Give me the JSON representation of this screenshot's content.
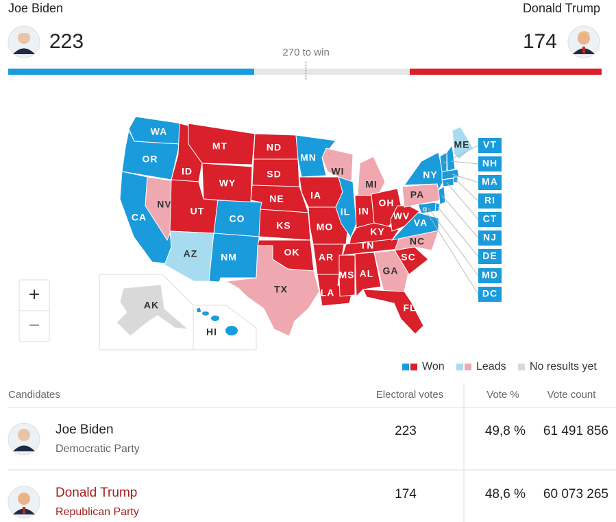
{
  "chart_data": {
    "type": "bar",
    "series": [
      {
        "name": "Joe Biden",
        "color": "#1a9bdb",
        "values": [
          223
        ]
      },
      {
        "name": "Donald Trump",
        "color": "#d9202b",
        "values": [
          174
        ]
      }
    ],
    "xlim": [
      0,
      538
    ],
    "threshold": {
      "value": 270,
      "label": "270 to win"
    }
  },
  "map": {
    "zoom_in": "+",
    "zoom_out": "−",
    "states": [
      {
        "label": "WA",
        "color": "#1a9bdb",
        "text_color": "#ffffff"
      },
      {
        "label": "OR",
        "color": "#1a9bdb",
        "text_color": "#ffffff"
      },
      {
        "label": "CA",
        "color": "#1a9bdb",
        "text_color": "#ffffff"
      },
      {
        "label": "NV",
        "color": "#f0a8b0",
        "text_color": "#333333"
      },
      {
        "label": "ID",
        "color": "#d9202b",
        "text_color": "#ffffff"
      },
      {
        "label": "MT",
        "color": "#d9202b",
        "text_color": "#ffffff"
      },
      {
        "label": "WY",
        "color": "#d9202b",
        "text_color": "#ffffff"
      },
      {
        "label": "UT",
        "color": "#d9202b",
        "text_color": "#ffffff"
      },
      {
        "label": "AZ",
        "color": "#a7dcf0",
        "text_color": "#333333"
      },
      {
        "label": "CO",
        "color": "#1a9bdb",
        "text_color": "#ffffff"
      },
      {
        "label": "NM",
        "color": "#1a9bdb",
        "text_color": "#ffffff"
      },
      {
        "label": "ND",
        "color": "#d9202b",
        "text_color": "#ffffff"
      },
      {
        "label": "SD",
        "color": "#d9202b",
        "text_color": "#ffffff"
      },
      {
        "label": "NE",
        "color": "#d9202b",
        "text_color": "#ffffff"
      },
      {
        "label": "KS",
        "color": "#d9202b",
        "text_color": "#ffffff"
      },
      {
        "label": "OK",
        "color": "#d9202b",
        "text_color": "#ffffff"
      },
      {
        "label": "TX",
        "color": "#f0a8b0",
        "text_color": "#333333"
      },
      {
        "label": "MN",
        "color": "#1a9bdb",
        "text_color": "#ffffff"
      },
      {
        "label": "IA",
        "color": "#d9202b",
        "text_color": "#ffffff"
      },
      {
        "label": "MO",
        "color": "#d9202b",
        "text_color": "#ffffff"
      },
      {
        "label": "AR",
        "color": "#d9202b",
        "text_color": "#ffffff"
      },
      {
        "label": "LA",
        "color": "#d9202b",
        "text_color": "#ffffff"
      },
      {
        "label": "WI",
        "color": "#f0a8b0",
        "text_color": "#333333"
      },
      {
        "label": "IL",
        "color": "#1a9bdb",
        "text_color": "#ffffff"
      },
      {
        "label": "MI",
        "color": "#f0a8b0",
        "text_color": "#333333"
      },
      {
        "label": "IN",
        "color": "#d9202b",
        "text_color": "#ffffff"
      },
      {
        "label": "OH",
        "color": "#d9202b",
        "text_color": "#ffffff"
      },
      {
        "label": "KY",
        "color": "#d9202b",
        "text_color": "#ffffff"
      },
      {
        "label": "TN",
        "color": "#d9202b",
        "text_color": "#ffffff"
      },
      {
        "label": "MS",
        "color": "#d9202b",
        "text_color": "#ffffff"
      },
      {
        "label": "AL",
        "color": "#d9202b",
        "text_color": "#ffffff"
      },
      {
        "label": "GA",
        "color": "#f0a8b0",
        "text_color": "#333333"
      },
      {
        "label": "FL",
        "color": "#d9202b",
        "text_color": "#ffffff"
      },
      {
        "label": "SC",
        "color": "#d9202b",
        "text_color": "#ffffff"
      },
      {
        "label": "NC",
        "color": "#f0a8b0",
        "text_color": "#333333"
      },
      {
        "label": "VA",
        "color": "#1a9bdb",
        "text_color": "#ffffff"
      },
      {
        "label": "WV",
        "color": "#d9202b",
        "text_color": "#ffffff"
      },
      {
        "label": "PA",
        "color": "#f0a8b0",
        "text_color": "#333333"
      },
      {
        "label": "NY",
        "color": "#1a9bdb",
        "text_color": "#ffffff"
      },
      {
        "label": "ME",
        "color": "#a7dcf0",
        "text_color": "#333333"
      },
      {
        "label": "VT",
        "color": "#1a9bdb",
        "text_color": "#ffffff"
      },
      {
        "label": "NH",
        "color": "#1a9bdb",
        "text_color": "#ffffff"
      },
      {
        "label": "MA",
        "color": "#1a9bdb",
        "text_color": "#ffffff"
      },
      {
        "label": "RI",
        "color": "#1a9bdb",
        "text_color": "#ffffff"
      },
      {
        "label": "CT",
        "color": "#1a9bdb",
        "text_color": "#ffffff"
      },
      {
        "label": "NJ",
        "color": "#1a9bdb",
        "text_color": "#ffffff"
      },
      {
        "label": "DE",
        "color": "#1a9bdb",
        "text_color": "#ffffff"
      },
      {
        "label": "MD",
        "color": "#1a9bdb",
        "text_color": "#ffffff"
      },
      {
        "label": "DC",
        "color": "#1a9bdb",
        "text_color": "#ffffff"
      },
      {
        "label": "AK",
        "color": "#d9d9d9",
        "text_color": "#333333"
      },
      {
        "label": "HI",
        "color": "#1a9bdb",
        "text_color": "#333333"
      }
    ]
  },
  "legend": [
    {
      "label": "Won",
      "colors": [
        "#1a9bdb",
        "#d9202b"
      ]
    },
    {
      "label": "Leads",
      "colors": [
        "#a7dcf0",
        "#f0a8b0"
      ]
    },
    {
      "label": "No results yet",
      "colors": [
        "#d9d9d9"
      ]
    }
  ],
  "table": {
    "headers": [
      "Candidates",
      "Electoral votes",
      "Vote %",
      "Vote count"
    ],
    "rows": [
      {
        "party": "Democratic Party",
        "vote_pct": "49,8 %",
        "vote_count": "61 491 856",
        "name_color": "#222222",
        "party_color": "#666666"
      },
      {
        "party": "Republican Party",
        "vote_pct": "48,6 %",
        "vote_count": "60 073 265",
        "name_color": "#a51d1d",
        "party_color": "#a51d1d"
      }
    ]
  }
}
